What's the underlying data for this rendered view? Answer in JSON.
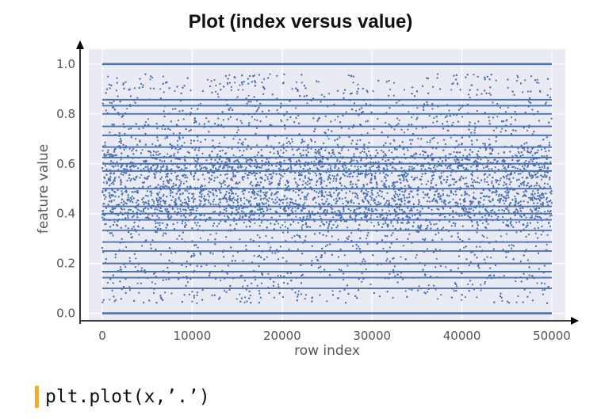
{
  "chart_data": {
    "type": "scatter",
    "title": "Plot (index versus value)",
    "xlabel": "row index",
    "ylabel": "feature value",
    "xlim": [
      -1500,
      51500
    ],
    "ylim": [
      -0.03,
      1.06
    ],
    "x_ticks": [
      0,
      10000,
      20000,
      30000,
      40000,
      50000
    ],
    "y_ticks": [
      0.0,
      0.2,
      0.4,
      0.6,
      0.8,
      1.0
    ],
    "y_tick_labels": [
      "0.0",
      "0.2",
      "0.4",
      "0.6",
      "0.8",
      "1.0"
    ],
    "grid": true,
    "marker": ".",
    "point_color": "#4c72b0",
    "plot_background": "#eaeaf2",
    "n_points": 50000,
    "x_range": [
      0,
      50000
    ],
    "constant_value_bands": [
      0.0,
      0.1,
      0.143,
      0.167,
      0.2,
      0.25,
      0.286,
      0.333,
      0.375,
      0.4,
      0.429,
      0.5,
      0.571,
      0.6,
      0.625,
      0.667,
      0.714,
      0.75,
      0.8,
      0.833,
      0.857,
      1.0
    ],
    "dense_value_clusters": [
      {
        "center": 0.43,
        "spread": 0.05
      },
      {
        "center": 0.58,
        "spread": 0.05
      }
    ]
  },
  "code": "plt.plot(x,’.’)"
}
